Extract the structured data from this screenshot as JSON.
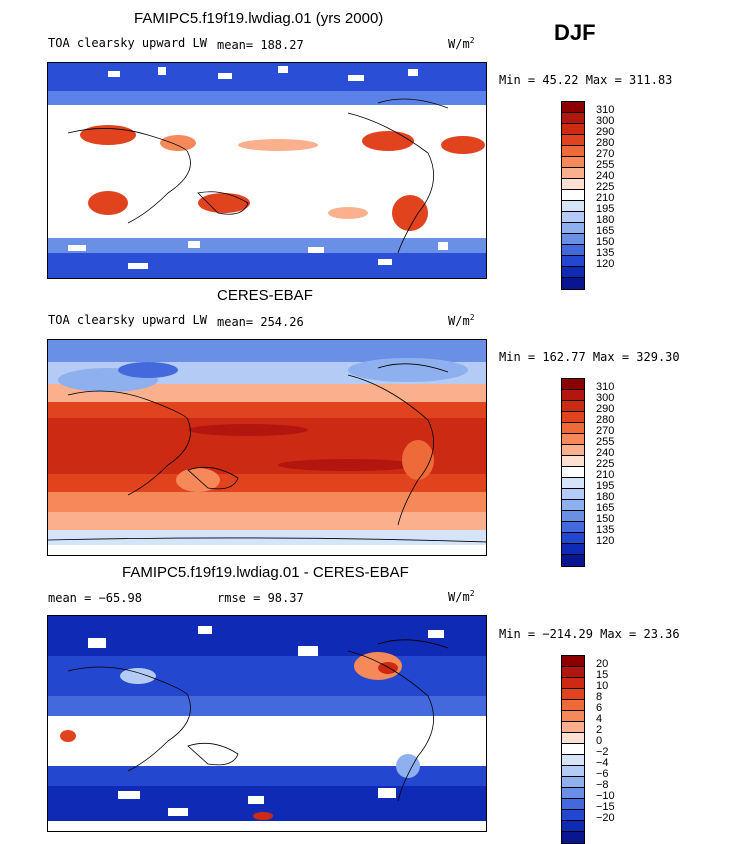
{
  "season": "DJF",
  "panels": [
    {
      "id": "model",
      "title": "FAMIPC5.f19f19.lwdiag.01 (yrs 2000)",
      "variable": "TOA clearsky upward LW",
      "mean_label": "mean= 188.27",
      "units_base": "W/m",
      "units_exp": "2",
      "minmax": "Min =  45.22 Max = 311.83",
      "colorbar_labels": [
        "310",
        "300",
        "290",
        "280",
        "270",
        "255",
        "240",
        "225",
        "210",
        "195",
        "180",
        "165",
        "150",
        "135",
        "120"
      ]
    },
    {
      "id": "obs",
      "title": "CERES-EBAF",
      "variable": "TOA clearsky upward LW",
      "mean_label": "mean= 254.26",
      "units_base": "W/m",
      "units_exp": "2",
      "minmax": "Min = 162.77 Max = 329.30",
      "colorbar_labels": [
        "310",
        "300",
        "290",
        "280",
        "270",
        "255",
        "240",
        "225",
        "210",
        "195",
        "180",
        "165",
        "150",
        "135",
        "120"
      ]
    },
    {
      "id": "diff",
      "title": "FAMIPC5.f19f19.lwdiag.01 - CERES-EBAF",
      "mean_label": "mean = −65.98",
      "rmse_label": "rmse =  98.37",
      "units_base": "W/m",
      "units_exp": "2",
      "minmax": "Min = −214.29 Max =  23.36",
      "colorbar_labels": [
        "20",
        "15",
        "10",
        "8",
        "6",
        "4",
        "2",
        "0",
        "−2",
        "−4",
        "−6",
        "−8",
        "−10",
        "−15",
        "−20"
      ]
    }
  ],
  "colorbar_colors": [
    "#8b0000",
    "#b3150f",
    "#cc2a12",
    "#e0431e",
    "#ee6a38",
    "#f5895a",
    "#fab08c",
    "#fde0d2",
    "#ffffff",
    "#d6e4fa",
    "#b4ccf5",
    "#8fb0ee",
    "#6a90e6",
    "#4469dc",
    "#2347cf",
    "#0f2ab5",
    "#0a1690"
  ],
  "chart_data": {
    "type": "heatmap",
    "season": "DJF",
    "maps": [
      {
        "title": "FAMIPC5.f19f19.lwdiag.01 (yrs 2000)",
        "variable": "TOA clearsky upward LW",
        "units": "W/m2",
        "mean": 188.27,
        "min": 45.22,
        "max": 311.83,
        "contour_levels": [
          120,
          135,
          150,
          165,
          180,
          195,
          210,
          225,
          240,
          255,
          270,
          280,
          290,
          300,
          310
        ]
      },
      {
        "title": "CERES-EBAF",
        "variable": "TOA clearsky upward LW",
        "units": "W/m2",
        "mean": 254.26,
        "min": 162.77,
        "max": 329.3,
        "contour_levels": [
          120,
          135,
          150,
          165,
          180,
          195,
          210,
          225,
          240,
          255,
          270,
          280,
          290,
          300,
          310
        ]
      },
      {
        "title": "FAMIPC5.f19f19.lwdiag.01 - CERES-EBAF",
        "units": "W/m2",
        "mean": -65.98,
        "rmse": 98.37,
        "min": -214.29,
        "max": 23.36,
        "contour_levels": [
          -20,
          -15,
          -10,
          -8,
          -6,
          -4,
          -2,
          0,
          2,
          4,
          6,
          8,
          10,
          15,
          20
        ]
      }
    ]
  }
}
